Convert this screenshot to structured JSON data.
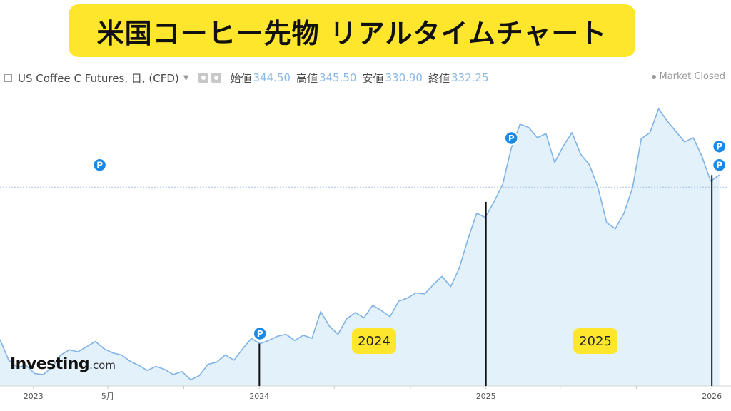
{
  "title_banner": "米国コーヒー先物 リアルタイムチャート",
  "legend": {
    "symbol_label": "US Coffee C Futures, 日, (CFD)",
    "open_label": "始値",
    "open_value": "344.50",
    "high_label": "高値",
    "high_value": "345.50",
    "low_label": "安値",
    "low_value": "330.90",
    "close_label": "終値",
    "close_value": "332.25"
  },
  "market_status": "Market Closed",
  "logo": {
    "main": "Investing",
    "sub": ".com"
  },
  "badges": [
    "2024",
    "2025"
  ],
  "colors": {
    "line": "#7fb3e6",
    "fill": "#e3f1fb",
    "banner": "#fde62c",
    "marker": "#1e88e5",
    "axis_text": "#555555",
    "price_line": "#a9c3e6"
  },
  "chart_data": {
    "type": "area",
    "series": [
      {
        "x": [
          "2022-11-08",
          "2022-11-22",
          "2022-12-06",
          "2022-12-20",
          "2023-01-03",
          "2023-01-17",
          "2023-01-31",
          "2023-02-14",
          "2023-02-28",
          "2023-03-14",
          "2023-03-28",
          "2023-04-11",
          "2023-04-25",
          "2023-05-09",
          "2023-05-23",
          "2023-06-06",
          "2023-06-20",
          "2023-07-04",
          "2023-07-18",
          "2023-08-01",
          "2023-08-15",
          "2023-08-29",
          "2023-09-12",
          "2023-09-26",
          "2023-10-10",
          "2023-10-24",
          "2023-11-07",
          "2023-11-21",
          "2023-12-05",
          "2023-12-19",
          "2024-01-02",
          "2024-01-16",
          "2024-01-30",
          "2024-02-13",
          "2024-02-27",
          "2024-03-12",
          "2024-03-26",
          "2024-04-09",
          "2024-04-23",
          "2024-05-07",
          "2024-05-21",
          "2024-06-04",
          "2024-06-18",
          "2024-07-02",
          "2024-07-16",
          "2024-07-30",
          "2024-08-13",
          "2024-08-27",
          "2024-09-10",
          "2024-09-24",
          "2024-10-08",
          "2024-10-22",
          "2024-11-05",
          "2024-11-19",
          "2024-12-03",
          "2024-12-17",
          "2024-12-31",
          "2025-01-14",
          "2025-01-28",
          "2025-02-11",
          "2025-02-25",
          "2025-03-11",
          "2025-03-25",
          "2025-04-08",
          "2025-04-22",
          "2025-05-06",
          "2025-05-20",
          "2025-06-03",
          "2025-06-17",
          "2025-07-01",
          "2025-07-15",
          "2025-07-29",
          "2025-08-12",
          "2025-08-26",
          "2025-09-09",
          "2025-09-23",
          "2025-10-07",
          "2025-10-21",
          "2025-11-04",
          "2025-11-18",
          "2025-12-02",
          "2025-12-16",
          "2025-12-30",
          "2026-01-13"
        ],
        "values": [
          185,
          165,
          158,
          160,
          152,
          151,
          158,
          170,
          175,
          173,
          178,
          183,
          176,
          172,
          170,
          164,
          160,
          155,
          159,
          156,
          151,
          154,
          146,
          150,
          161,
          163,
          170,
          165,
          176,
          186,
          181,
          184,
          188,
          190,
          184,
          189,
          186,
          212,
          198,
          190,
          205,
          211,
          206,
          218,
          213,
          207,
          222,
          225,
          230,
          229,
          238,
          246,
          236,
          254,
          282,
          307,
          303,
          318,
          335,
          370,
          393,
          390,
          380,
          384,
          356,
          372,
          385,
          364,
          354,
          332,
          298,
          292,
          307,
          332,
          379,
          385,
          408,
          396,
          386,
          376,
          380,
          362,
          338,
          344
        ]
      }
    ],
    "markers": [
      {
        "x": "2023-04-18",
        "label": "P"
      },
      {
        "x": "2024-01-02",
        "label": "P"
      },
      {
        "x": "2025-02-11",
        "label": "P"
      },
      {
        "x": "2026-01-13",
        "label": "P"
      },
      {
        "x": "2026-01-13",
        "label": "P"
      }
    ],
    "last_price": 332.25,
    "x_ticks": [
      "2023",
      "5月",
      "2024",
      "2025",
      "2026"
    ],
    "x_tick_dates": [
      "2023-01-01",
      "2023-05-01",
      "2024-01-01",
      "2025-01-01",
      "2026-01-01"
    ],
    "minor_tick_dates": [
      "2023-09-01",
      "2024-05-01",
      "2024-09-01",
      "2025-05-01",
      "2025-09-01"
    ],
    "year_dividers": [
      "2024-01-01",
      "2025-01-01",
      "2026-01-01"
    ],
    "xlim": [
      "2022-11-08",
      "2026-01-25"
    ],
    "ylim": [
      140,
      420
    ],
    "grid": false
  }
}
